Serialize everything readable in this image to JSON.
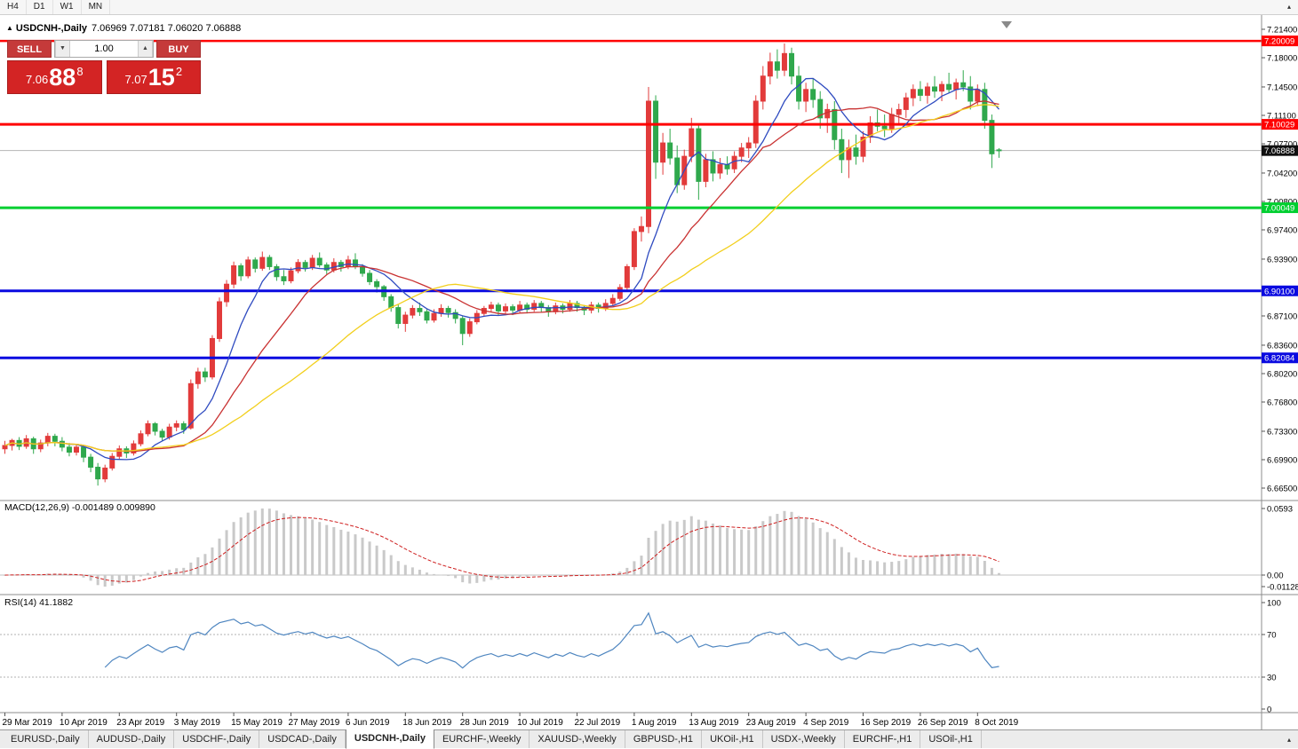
{
  "toolbar": {
    "timeframes": [
      "H4",
      "D1",
      "W1",
      "MN"
    ],
    "overflow_icon": "▴"
  },
  "chart_header": {
    "marker": "▲",
    "title": "USDCNH-,Daily",
    "ohlc": "7.06969 7.07181 7.06020 7.06888"
  },
  "trade_panel": {
    "sell_label": "SELL",
    "buy_label": "BUY",
    "volume": "1.00",
    "spin_down_icon": "▼",
    "spin_up_icon": "▲",
    "sell_price": {
      "prefix": "7.06",
      "big": "88",
      "sup": "8"
    },
    "buy_price": {
      "prefix": "7.07",
      "big": "15",
      "sup": "2"
    }
  },
  "colors": {
    "up": "#e23b3b",
    "down": "#2fa84c",
    "ma_fast": "#2f4bc0",
    "ma_mid": "#c93232",
    "ma_slow": "#f2cf1d",
    "bid_line": "#b4b4b4",
    "bid_badge": "#101010",
    "macd_bar": "#c9c9c9",
    "macd_signal": "#cf2020",
    "rsi_line": "#4f86c0",
    "axis_text": "#000000"
  },
  "chart_data": {
    "type": "candlestick",
    "symbol": "USDCNH-,Daily",
    "x_labels": [
      "29 Mar 2019",
      "10 Apr 2019",
      "23 Apr 2019",
      "3 May 2019",
      "15 May 2019",
      "27 May 2019",
      "6 Jun 2019",
      "18 Jun 2019",
      "28 Jun 2019",
      "10 Jul 2019",
      "22 Jul 2019",
      "1 Aug 2019",
      "13 Aug 2019",
      "23 Aug 2019",
      "4 Sep 2019",
      "16 Sep 2019",
      "26 Sep 2019",
      "8 Oct 2019"
    ],
    "x_tick_indices": [
      0,
      8,
      16,
      24,
      32,
      40,
      48,
      56,
      64,
      72,
      80,
      88,
      96,
      104,
      112,
      120,
      128,
      136
    ],
    "y_axis_labels": [
      "7.21400",
      "7.18000",
      "7.14500",
      "7.11100",
      "7.07700",
      "7.04200",
      "7.00800",
      "6.97400",
      "6.93900",
      "6.87100",
      "6.83600",
      "6.80200",
      "6.76800",
      "6.73300",
      "6.69900",
      "6.66500"
    ],
    "y_range": {
      "max": 7.214,
      "min": 6.665
    },
    "current_price": {
      "value": 7.06888,
      "label": "7.06888"
    },
    "hlines": [
      {
        "value": 7.20009,
        "label": "7.20009",
        "color": "#ff0000",
        "width": 2.5
      },
      {
        "value": 7.10029,
        "label": "7.10029",
        "color": "#ff0000",
        "width": 3
      },
      {
        "value": 7.00049,
        "label": "7.00049",
        "color": "#00cf30",
        "width": 3
      },
      {
        "value": 6.901,
        "label": "6.90100",
        "color": "#0a0ae0",
        "width": 3
      },
      {
        "value": 6.82084,
        "label": "6.82084",
        "color": "#0a0ae0",
        "width": 3
      }
    ],
    "moving_averages": [
      {
        "period": 8,
        "color": "#2f4bc0"
      },
      {
        "period": 17,
        "color": "#c93232"
      },
      {
        "period": 34,
        "color": "#f2cf1d"
      }
    ],
    "macd": {
      "label": "MACD(12,26,9) -0.001489 0.009890",
      "params": [
        12,
        26,
        9
      ],
      "axis_labels": [
        "0.0593",
        "0.00",
        "-0.01128"
      ]
    },
    "rsi": {
      "label": "RSI(14) 41.1882",
      "period": 14,
      "levels": [
        70,
        30
      ],
      "axis_labels": [
        "100",
        "70",
        "30",
        "0"
      ]
    },
    "candles": [
      [
        6.712,
        6.7215,
        6.706,
        6.716
      ],
      [
        6.716,
        6.724,
        6.71,
        6.722
      ],
      [
        6.722,
        6.726,
        6.7105,
        6.715
      ],
      [
        6.715,
        6.7285,
        6.712,
        6.724
      ],
      [
        6.724,
        6.7265,
        6.706,
        6.712
      ],
      [
        6.712,
        6.723,
        6.708,
        6.719
      ],
      [
        6.719,
        6.731,
        6.715,
        6.727
      ],
      [
        6.727,
        6.73,
        6.715,
        6.721
      ],
      [
        6.721,
        6.726,
        6.709,
        6.714
      ],
      [
        6.714,
        6.719,
        6.703,
        6.708
      ],
      [
        6.708,
        6.718,
        6.704,
        6.714
      ],
      [
        6.714,
        6.716,
        6.696,
        6.702
      ],
      [
        6.702,
        6.706,
        6.684,
        6.69
      ],
      [
        6.69,
        6.695,
        6.668,
        6.676
      ],
      [
        6.676,
        6.693,
        6.672,
        6.689
      ],
      [
        6.689,
        6.707,
        6.686,
        6.703
      ],
      [
        6.703,
        6.716,
        6.7,
        6.712
      ],
      [
        6.712,
        6.715,
        6.701,
        6.707
      ],
      [
        6.707,
        6.722,
        6.704,
        6.718
      ],
      [
        6.718,
        6.734,
        6.715,
        6.73
      ],
      [
        6.73,
        6.746,
        6.727,
        6.742
      ],
      [
        6.742,
        6.744,
        6.728,
        6.733
      ],
      [
        6.733,
        6.736,
        6.721,
        6.726
      ],
      [
        6.726,
        6.742,
        6.723,
        6.738
      ],
      [
        6.738,
        6.746,
        6.733,
        6.742
      ],
      [
        6.742,
        6.745,
        6.73,
        6.735
      ],
      [
        6.737,
        6.795,
        6.735,
        6.79
      ],
      [
        6.79,
        6.809,
        6.784,
        6.804
      ],
      [
        6.804,
        6.809,
        6.792,
        6.798
      ],
      [
        6.798,
        6.848,
        6.795,
        6.844
      ],
      [
        6.844,
        6.893,
        6.84,
        6.888
      ],
      [
        6.888,
        6.914,
        6.882,
        6.909
      ],
      [
        6.909,
        6.936,
        6.904,
        6.931
      ],
      [
        6.931,
        6.934,
        6.913,
        6.919
      ],
      [
        6.919,
        6.942,
        6.916,
        6.938
      ],
      [
        6.938,
        6.941,
        6.923,
        6.928
      ],
      [
        6.928,
        6.948,
        6.925,
        6.941
      ],
      [
        6.941,
        6.944,
        6.926,
        6.93
      ],
      [
        6.93,
        6.933,
        6.913,
        6.918
      ],
      [
        6.918,
        6.926,
        6.908,
        6.913
      ],
      [
        6.913,
        6.929,
        6.91,
        6.925
      ],
      [
        6.925,
        6.939,
        6.922,
        6.935
      ],
      [
        6.935,
        6.938,
        6.924,
        6.929
      ],
      [
        6.929,
        6.944,
        6.926,
        6.94
      ],
      [
        6.94,
        6.947,
        6.929,
        6.932
      ],
      [
        6.932,
        6.935,
        6.921,
        6.926
      ],
      [
        6.926,
        6.94,
        6.923,
        6.935
      ],
      [
        6.935,
        6.938,
        6.924,
        6.93
      ],
      [
        6.93,
        6.943,
        6.927,
        6.938
      ],
      [
        6.938,
        6.946,
        6.927,
        6.93
      ],
      [
        6.93,
        6.933,
        6.918,
        6.922
      ],
      [
        6.922,
        6.926,
        6.908,
        6.912
      ],
      [
        6.912,
        6.915,
        6.899,
        6.906
      ],
      [
        6.906,
        6.908,
        6.889,
        6.894
      ],
      [
        6.894,
        6.897,
        6.876,
        6.881
      ],
      [
        6.881,
        6.885,
        6.856,
        6.862
      ],
      [
        6.862,
        6.876,
        6.852,
        6.872
      ],
      [
        6.872,
        6.884,
        6.868,
        6.88
      ],
      [
        6.88,
        6.887,
        6.871,
        6.876
      ],
      [
        6.876,
        6.88,
        6.862,
        6.866
      ],
      [
        6.866,
        6.879,
        6.863,
        6.874
      ],
      [
        6.874,
        6.885,
        6.87,
        6.88
      ],
      [
        6.88,
        6.883,
        6.869,
        6.875
      ],
      [
        6.875,
        6.879,
        6.862,
        6.868
      ],
      [
        6.868,
        6.871,
        6.836,
        6.85
      ],
      [
        6.85,
        6.868,
        6.846,
        6.864
      ],
      [
        6.864,
        6.878,
        6.861,
        6.874
      ],
      [
        6.874,
        6.883,
        6.87,
        6.88
      ],
      [
        6.88,
        6.888,
        6.876,
        6.884
      ],
      [
        6.884,
        6.887,
        6.872,
        6.877
      ],
      [
        6.877,
        6.886,
        6.873,
        6.882
      ],
      [
        6.882,
        6.885,
        6.872,
        6.878
      ],
      [
        6.878,
        6.889,
        6.875,
        6.884
      ],
      [
        6.884,
        6.887,
        6.874,
        6.879
      ],
      [
        6.879,
        6.89,
        6.876,
        6.886
      ],
      [
        6.886,
        6.889,
        6.875,
        6.881
      ],
      [
        6.881,
        6.884,
        6.87,
        6.876
      ],
      [
        6.876,
        6.887,
        6.873,
        6.883
      ],
      [
        6.883,
        6.886,
        6.874,
        6.879
      ],
      [
        6.879,
        6.89,
        6.876,
        6.886
      ],
      [
        6.886,
        6.889,
        6.876,
        6.881
      ],
      [
        6.881,
        6.884,
        6.872,
        6.878
      ],
      [
        6.878,
        6.888,
        6.874,
        6.884
      ],
      [
        6.884,
        6.887,
        6.875,
        6.88
      ],
      [
        6.88,
        6.891,
        6.877,
        6.886
      ],
      [
        6.886,
        6.897,
        6.883,
        6.892
      ],
      [
        6.892,
        6.909,
        6.889,
        6.905
      ],
      [
        6.905,
        6.933,
        6.901,
        6.93
      ],
      [
        6.93,
        6.976,
        6.926,
        6.972
      ],
      [
        6.972,
        6.99,
        6.96,
        6.978
      ],
      [
        6.978,
        7.145,
        6.97,
        7.128
      ],
      [
        7.128,
        7.135,
        7.035,
        7.055
      ],
      [
        7.055,
        7.09,
        7.04,
        7.078
      ],
      [
        7.078,
        7.095,
        7.052,
        7.06
      ],
      [
        7.06,
        7.075,
        7.018,
        7.028
      ],
      [
        7.028,
        7.07,
        7.022,
        7.062
      ],
      [
        7.062,
        7.108,
        7.055,
        7.095
      ],
      [
        7.095,
        7.1,
        7.01,
        7.032
      ],
      [
        7.032,
        7.065,
        7.025,
        7.058
      ],
      [
        7.058,
        7.068,
        7.032,
        7.042
      ],
      [
        7.042,
        7.06,
        7.035,
        7.052
      ],
      [
        7.052,
        7.062,
        7.04,
        7.047
      ],
      [
        7.047,
        7.068,
        7.042,
        7.062
      ],
      [
        7.062,
        7.078,
        7.055,
        7.072
      ],
      [
        7.072,
        7.085,
        7.06,
        7.078
      ],
      [
        7.078,
        7.135,
        7.072,
        7.128
      ],
      [
        7.128,
        7.17,
        7.118,
        7.158
      ],
      [
        7.158,
        7.186,
        7.148,
        7.175
      ],
      [
        7.175,
        7.19,
        7.155,
        7.165
      ],
      [
        7.165,
        7.197,
        7.158,
        7.185
      ],
      [
        7.185,
        7.192,
        7.148,
        7.158
      ],
      [
        7.158,
        7.17,
        7.118,
        7.128
      ],
      [
        7.128,
        7.15,
        7.115,
        7.142
      ],
      [
        7.142,
        7.155,
        7.12,
        7.13
      ],
      [
        7.13,
        7.14,
        7.095,
        7.108
      ],
      [
        7.108,
        7.125,
        7.09,
        7.118
      ],
      [
        7.118,
        7.128,
        7.07,
        7.082
      ],
      [
        7.082,
        7.095,
        7.042,
        7.058
      ],
      [
        7.058,
        7.082,
        7.036,
        7.072
      ],
      [
        7.072,
        7.088,
        7.052,
        7.062
      ],
      [
        7.062,
        7.092,
        7.055,
        7.085
      ],
      [
        7.085,
        7.11,
        7.078,
        7.102
      ],
      [
        7.102,
        7.118,
        7.092,
        7.098
      ],
      [
        7.098,
        7.112,
        7.085,
        7.095
      ],
      [
        7.095,
        7.12,
        7.09,
        7.112
      ],
      [
        7.112,
        7.125,
        7.1,
        7.118
      ],
      [
        7.118,
        7.138,
        7.108,
        7.132
      ],
      [
        7.132,
        7.148,
        7.122,
        7.142
      ],
      [
        7.142,
        7.152,
        7.128,
        7.135
      ],
      [
        7.135,
        7.15,
        7.125,
        7.145
      ],
      [
        7.145,
        7.158,
        7.132,
        7.14
      ],
      [
        7.14,
        7.152,
        7.128,
        7.148
      ],
      [
        7.148,
        7.162,
        7.138,
        7.142
      ],
      [
        7.142,
        7.155,
        7.13,
        7.15
      ],
      [
        7.15,
        7.165,
        7.14,
        7.145
      ],
      [
        7.145,
        7.158,
        7.118,
        7.128
      ],
      [
        7.128,
        7.148,
        7.122,
        7.142
      ],
      [
        7.142,
        7.15,
        7.095,
        7.105
      ],
      [
        7.105,
        7.112,
        7.048,
        7.065
      ],
      [
        7.0697,
        7.0718,
        7.0602,
        7.0689
      ]
    ]
  },
  "tabs": [
    {
      "label": "EURUSD-,Daily",
      "active": false
    },
    {
      "label": "AUDUSD-,Daily",
      "active": false
    },
    {
      "label": "USDCHF-,Daily",
      "active": false
    },
    {
      "label": "USDCAD-,Daily",
      "active": false
    },
    {
      "label": "USDCNH-,Daily",
      "active": true
    },
    {
      "label": "EURCHF-,Weekly",
      "active": false
    },
    {
      "label": "XAUUSD-,Weekly",
      "active": false
    },
    {
      "label": "GBPUSD-,H1",
      "active": false
    },
    {
      "label": "UKOil-,H1",
      "active": false
    },
    {
      "label": "USDX-,Weekly",
      "active": false
    },
    {
      "label": "EURCHF-,H1",
      "active": false
    },
    {
      "label": "USOil-,H1",
      "active": false
    }
  ],
  "tabs_scroll_icon": "▴"
}
